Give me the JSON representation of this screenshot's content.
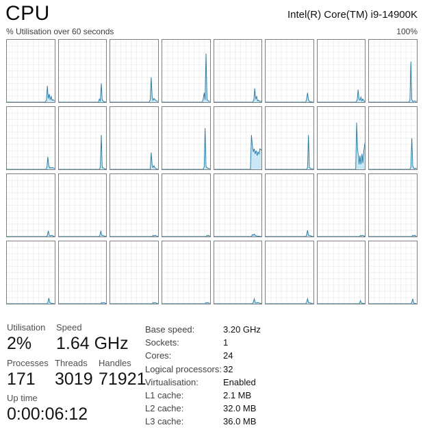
{
  "header": {
    "title": "CPU",
    "chip_name": "Intel(R) Core(TM) i9-14900K"
  },
  "graph_header": {
    "left_label": "% Utilisation over 60 seconds",
    "right_label": "100%"
  },
  "colors": {
    "line": "#2b7ca3",
    "fill": "#c9e7f5",
    "grid": "#efefef",
    "border": "#7f7f7f"
  },
  "stats": {
    "utilisation": {
      "label": "Utilisation",
      "value": "2%"
    },
    "speed": {
      "label": "Speed",
      "value": "1.64 GHz"
    },
    "processes": {
      "label": "Processes",
      "value": "171"
    },
    "threads": {
      "label": "Threads",
      "value": "3019"
    },
    "handles": {
      "label": "Handles",
      "value": "71921"
    },
    "uptime": {
      "label": "Up time",
      "value": "0:00:06:12"
    }
  },
  "details": [
    {
      "label": "Base speed:",
      "value": "3.20 GHz"
    },
    {
      "label": "Sockets:",
      "value": "1"
    },
    {
      "label": "Cores:",
      "value": "24"
    },
    {
      "label": "Logical processors:",
      "value": "32"
    },
    {
      "label": "Virtualisation:",
      "value": "Enabled"
    },
    {
      "label": "L1 cache:",
      "value": "2.1 MB"
    },
    {
      "label": "L2 cache:",
      "value": "32.0 MB"
    },
    {
      "label": "L3 cache:",
      "value": "36.0 MB"
    }
  ],
  "chart_data": {
    "type": "area",
    "title": "% Utilisation over 60 seconds",
    "x_range_seconds": 60,
    "ylim": [
      0,
      100
    ],
    "layout": "8x4 grid, one sparkline per logical processor",
    "cores": [
      {
        "points": [
          [
            0,
            0
          ],
          [
            80,
            0
          ],
          [
            83,
            3
          ],
          [
            85,
            26
          ],
          [
            87,
            6
          ],
          [
            89,
            13
          ],
          [
            91,
            4
          ],
          [
            93,
            9
          ],
          [
            95,
            3
          ],
          [
            97,
            4
          ],
          [
            100,
            2
          ]
        ]
      },
      {
        "points": [
          [
            0,
            0
          ],
          [
            83,
            0
          ],
          [
            85,
            5
          ],
          [
            87,
            2
          ],
          [
            89,
            30
          ],
          [
            91,
            3
          ],
          [
            94,
            1
          ],
          [
            100,
            0
          ]
        ]
      },
      {
        "points": [
          [
            0,
            0
          ],
          [
            82,
            0
          ],
          [
            84,
            4
          ],
          [
            86,
            40
          ],
          [
            88,
            7
          ],
          [
            90,
            3
          ],
          [
            92,
            6
          ],
          [
            94,
            4
          ],
          [
            97,
            2
          ],
          [
            100,
            1
          ]
        ]
      },
      {
        "points": [
          [
            0,
            0
          ],
          [
            84,
            0
          ],
          [
            86,
            5
          ],
          [
            88,
            15
          ],
          [
            90,
            4
          ],
          [
            92,
            78
          ],
          [
            94,
            4
          ],
          [
            97,
            2
          ],
          [
            100,
            1
          ]
        ]
      },
      {
        "points": [
          [
            0,
            0
          ],
          [
            80,
            0
          ],
          [
            83,
            3
          ],
          [
            85,
            22
          ],
          [
            87,
            5
          ],
          [
            89,
            9
          ],
          [
            91,
            2
          ],
          [
            93,
            3
          ],
          [
            96,
            1
          ],
          [
            100,
            2
          ]
        ]
      },
      {
        "points": [
          [
            0,
            0
          ],
          [
            84,
            0
          ],
          [
            86,
            4
          ],
          [
            88,
            15
          ],
          [
            90,
            4
          ],
          [
            92,
            1
          ],
          [
            100,
            0
          ]
        ]
      },
      {
        "points": [
          [
            0,
            0
          ],
          [
            80,
            0
          ],
          [
            83,
            3
          ],
          [
            85,
            20
          ],
          [
            87,
            5
          ],
          [
            89,
            3
          ],
          [
            91,
            8
          ],
          [
            93,
            2
          ],
          [
            95,
            5
          ],
          [
            97,
            2
          ],
          [
            100,
            1
          ]
        ]
      },
      {
        "points": [
          [
            0,
            0
          ],
          [
            84,
            0
          ],
          [
            86,
            3
          ],
          [
            88,
            65
          ],
          [
            90,
            4
          ],
          [
            92,
            1
          ],
          [
            95,
            2
          ],
          [
            100,
            1
          ]
        ]
      },
      {
        "points": [
          [
            0,
            0
          ],
          [
            82,
            0
          ],
          [
            84,
            3
          ],
          [
            86,
            20
          ],
          [
            88,
            5
          ],
          [
            90,
            2
          ],
          [
            92,
            3
          ],
          [
            94,
            2
          ],
          [
            96,
            3
          ],
          [
            98,
            2
          ],
          [
            100,
            1
          ]
        ]
      },
      {
        "points": [
          [
            0,
            0
          ],
          [
            85,
            0
          ],
          [
            87,
            3
          ],
          [
            89,
            55
          ],
          [
            91,
            3
          ],
          [
            94,
            2
          ],
          [
            96,
            1
          ],
          [
            100,
            0
          ]
        ]
      },
      {
        "points": [
          [
            0,
            0
          ],
          [
            84,
            0
          ],
          [
            86,
            27
          ],
          [
            88,
            6
          ],
          [
            90,
            3
          ],
          [
            92,
            6
          ],
          [
            94,
            2
          ],
          [
            100,
            0
          ]
        ]
      },
      {
        "points": [
          [
            0,
            0
          ],
          [
            86,
            0
          ],
          [
            88,
            4
          ],
          [
            90,
            66
          ],
          [
            92,
            4
          ],
          [
            95,
            2
          ],
          [
            100,
            1
          ]
        ]
      },
      {
        "points": [
          [
            0,
            0
          ],
          [
            76,
            0
          ],
          [
            78,
            55
          ],
          [
            80,
            38
          ],
          [
            82,
            28
          ],
          [
            84,
            33
          ],
          [
            86,
            25
          ],
          [
            88,
            30
          ],
          [
            90,
            22
          ],
          [
            92,
            28
          ],
          [
            94,
            25
          ],
          [
            96,
            33
          ],
          [
            100,
            30
          ]
        ]
      },
      {
        "points": [
          [
            0,
            0
          ],
          [
            86,
            0
          ],
          [
            88,
            3
          ],
          [
            90,
            55
          ],
          [
            92,
            3
          ],
          [
            95,
            1
          ],
          [
            100,
            1
          ]
        ]
      },
      {
        "points": [
          [
            0,
            0
          ],
          [
            80,
            0
          ],
          [
            82,
            75
          ],
          [
            84,
            30
          ],
          [
            86,
            20
          ],
          [
            87,
            8
          ],
          [
            89,
            22
          ],
          [
            91,
            8
          ],
          [
            93,
            25
          ],
          [
            95,
            10
          ],
          [
            97,
            30
          ],
          [
            100,
            45
          ]
        ]
      },
      {
        "points": [
          [
            0,
            0
          ],
          [
            86,
            0
          ],
          [
            88,
            4
          ],
          [
            90,
            50
          ],
          [
            92,
            5
          ],
          [
            95,
            1
          ],
          [
            98,
            2
          ],
          [
            100,
            1
          ]
        ]
      },
      {
        "points": [
          [
            0,
            0
          ],
          [
            83,
            0
          ],
          [
            85,
            2
          ],
          [
            87,
            9
          ],
          [
            89,
            2
          ],
          [
            91,
            1
          ],
          [
            94,
            2
          ],
          [
            100,
            0
          ]
        ]
      },
      {
        "points": [
          [
            0,
            0
          ],
          [
            84,
            0
          ],
          [
            86,
            2
          ],
          [
            88,
            9
          ],
          [
            90,
            2
          ],
          [
            100,
            0
          ]
        ]
      },
      {
        "points": [
          [
            0,
            0
          ],
          [
            88,
            0
          ],
          [
            90,
            2
          ],
          [
            92,
            1
          ],
          [
            94,
            2
          ],
          [
            100,
            0
          ]
        ]
      },
      {
        "points": [
          [
            0,
            0
          ],
          [
            92,
            0
          ],
          [
            94,
            2
          ],
          [
            96,
            1
          ],
          [
            98,
            2
          ],
          [
            100,
            0
          ]
        ]
      },
      {
        "points": [
          [
            0,
            0
          ],
          [
            78,
            0
          ],
          [
            80,
            3
          ],
          [
            82,
            2
          ],
          [
            84,
            4
          ],
          [
            86,
            2
          ],
          [
            88,
            1
          ],
          [
            100,
            0
          ]
        ]
      },
      {
        "points": [
          [
            0,
            0
          ],
          [
            84,
            0
          ],
          [
            86,
            2
          ],
          [
            88,
            10
          ],
          [
            90,
            2
          ],
          [
            100,
            0
          ]
        ]
      },
      {
        "points": [
          [
            0,
            0
          ],
          [
            88,
            0
          ],
          [
            90,
            2
          ],
          [
            92,
            1
          ],
          [
            94,
            2
          ],
          [
            100,
            0
          ]
        ]
      },
      {
        "points": [
          [
            0,
            0
          ],
          [
            90,
            0
          ],
          [
            92,
            2
          ],
          [
            94,
            1
          ],
          [
            96,
            2
          ],
          [
            100,
            0
          ]
        ]
      },
      {
        "points": [
          [
            0,
            0
          ],
          [
            84,
            0
          ],
          [
            86,
            2
          ],
          [
            88,
            9
          ],
          [
            90,
            2
          ],
          [
            93,
            1
          ],
          [
            100,
            0
          ]
        ]
      },
      {
        "points": [
          [
            0,
            0
          ],
          [
            88,
            0
          ],
          [
            90,
            2
          ],
          [
            92,
            1
          ],
          [
            94,
            2
          ],
          [
            100,
            0
          ]
        ]
      },
      {
        "points": [
          [
            0,
            0
          ],
          [
            88,
            0
          ],
          [
            90,
            2
          ],
          [
            92,
            1
          ],
          [
            94,
            2
          ],
          [
            100,
            0
          ]
        ]
      },
      {
        "points": [
          [
            0,
            0
          ],
          [
            90,
            0
          ],
          [
            92,
            2
          ],
          [
            94,
            1
          ],
          [
            96,
            2
          ],
          [
            100,
            0
          ]
        ]
      },
      {
        "points": [
          [
            0,
            0
          ],
          [
            80,
            0
          ],
          [
            82,
            2
          ],
          [
            84,
            8
          ],
          [
            86,
            2
          ],
          [
            88,
            1
          ],
          [
            91,
            2
          ],
          [
            100,
            0
          ]
        ]
      },
      {
        "points": [
          [
            0,
            0
          ],
          [
            84,
            0
          ],
          [
            86,
            2
          ],
          [
            88,
            8
          ],
          [
            90,
            2
          ],
          [
            100,
            0
          ]
        ]
      },
      {
        "points": [
          [
            0,
            0
          ],
          [
            86,
            0
          ],
          [
            88,
            1
          ],
          [
            90,
            5
          ],
          [
            92,
            1
          ],
          [
            100,
            0
          ]
        ]
      },
      {
        "points": [
          [
            0,
            0
          ],
          [
            88,
            0
          ],
          [
            90,
            2
          ],
          [
            92,
            8
          ],
          [
            94,
            1
          ],
          [
            100,
            0
          ]
        ]
      }
    ]
  }
}
